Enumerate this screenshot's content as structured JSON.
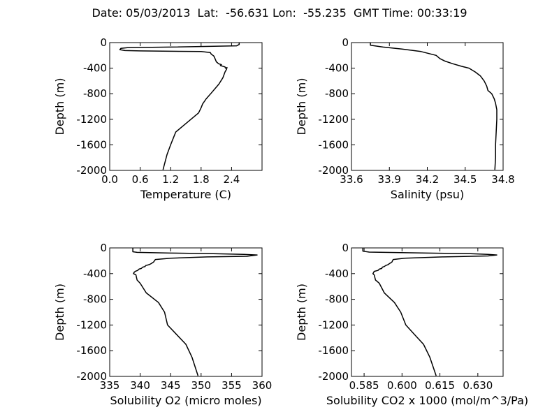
{
  "figure": {
    "title": "Date: 05/03/2013  Lat:  -56.631 Lon:  -55.235  GMT Time: 00:33:19"
  },
  "chart_data": [
    {
      "type": "line",
      "xlabel": "Temperature (C)",
      "ylabel": "Depth (m)",
      "xlim": [
        0.0,
        3.0
      ],
      "ylim": [
        -2000,
        0
      ],
      "xticks": [
        "0.0",
        "0.6",
        "1.2",
        "1.8",
        "2.4"
      ],
      "xtick_values": [
        0.0,
        0.6,
        1.2,
        1.8,
        2.4
      ],
      "yticks": [
        "0",
        "-400",
        "-800",
        "-1200",
        "-1600",
        "-2000"
      ],
      "ytick_values": [
        0,
        -400,
        -800,
        -1200,
        -1600,
        -2000
      ],
      "grid": false,
      "series": [
        {
          "x": [
            2.55,
            2.55,
            2.5,
            1.2,
            0.35,
            0.22,
            0.2,
            0.3,
            0.6,
            1.2,
            1.8,
            1.98,
            2.0,
            2.05,
            2.08,
            2.1,
            2.13,
            2.14,
            2.2,
            2.18,
            2.27,
            2.28,
            2.31,
            2.3,
            2.27,
            2.23,
            2.15,
            2.0,
            1.9,
            1.83,
            1.8,
            1.75,
            1.6,
            1.45,
            1.3,
            1.25,
            1.2,
            1.13,
            1.05
          ],
          "y": [
            0,
            -30,
            -50,
            -70,
            -80,
            -90,
            -110,
            -125,
            -130,
            -135,
            -140,
            -155,
            -180,
            -210,
            -260,
            -300,
            -320,
            -330,
            -345,
            -360,
            -380,
            -400,
            -390,
            -420,
            -460,
            -550,
            -650,
            -790,
            -880,
            -960,
            -1020,
            -1100,
            -1200,
            -1300,
            -1400,
            -1500,
            -1600,
            -1750,
            -1990
          ]
        }
      ]
    },
    {
      "type": "line",
      "xlabel": "Salinity (psu)",
      "ylabel": "Depth (m)",
      "xlim": [
        33.6,
        34.8
      ],
      "ylim": [
        -2000,
        0
      ],
      "xticks": [
        "33.6",
        "33.9",
        "34.2",
        "34.5",
        "34.8"
      ],
      "xtick_values": [
        33.6,
        33.9,
        34.2,
        34.5,
        34.8
      ],
      "yticks": [
        "0",
        "-400",
        "-800",
        "-1200",
        "-1600",
        "-2000"
      ],
      "ytick_values": [
        0,
        -400,
        -800,
        -1200,
        -1600,
        -2000
      ],
      "grid": false,
      "series": [
        {
          "x": [
            33.75,
            33.75,
            33.85,
            34.0,
            34.15,
            34.27,
            34.3,
            34.34,
            34.4,
            34.47,
            34.53,
            34.58,
            34.62,
            34.65,
            34.67,
            34.68,
            34.71,
            34.73,
            34.74,
            34.75,
            34.75,
            34.745,
            34.74,
            34.74,
            34.735
          ],
          "y": [
            0,
            -40,
            -70,
            -100,
            -140,
            -200,
            -250,
            -290,
            -330,
            -370,
            -400,
            -460,
            -520,
            -600,
            -680,
            -750,
            -800,
            -880,
            -950,
            -1050,
            -1200,
            -1400,
            -1600,
            -1800,
            -1990
          ]
        }
      ]
    },
    {
      "type": "line",
      "xlabel": "Solubility O2 (micro moles)",
      "ylabel": "Depth (m)",
      "xlim": [
        335,
        360
      ],
      "ylim": [
        -2000,
        0
      ],
      "xticks": [
        "335",
        "340",
        "345",
        "350",
        "355",
        "360"
      ],
      "xtick_values": [
        335,
        340,
        345,
        350,
        355,
        360
      ],
      "yticks": [
        "0",
        "-400",
        "-800",
        "-1200",
        "-1600",
        "-2000"
      ],
      "ytick_values": [
        0,
        -400,
        -800,
        -1200,
        -1600,
        -2000
      ],
      "grid": false,
      "series": [
        {
          "x": [
            338.8,
            338.8,
            339.5,
            345,
            352,
            357,
            359.2,
            357.5,
            351,
            345,
            342.5,
            342.2,
            341.8,
            341.5,
            340.9,
            340.8,
            340.4,
            340.2,
            339.8,
            339.6,
            339.2,
            339.0,
            338.9,
            339.3,
            339.5,
            340,
            341,
            343,
            344,
            344.5,
            346,
            347.5,
            348.5,
            349.5
          ],
          "y": [
            0,
            -60,
            -70,
            -80,
            -90,
            -100,
            -110,
            -130,
            -140,
            -160,
            -180,
            -220,
            -245,
            -260,
            -275,
            -290,
            -300,
            -320,
            -330,
            -350,
            -365,
            -380,
            -400,
            -420,
            -500,
            -550,
            -700,
            -850,
            -1000,
            -1200,
            -1350,
            -1500,
            -1700,
            -1990
          ]
        }
      ]
    },
    {
      "type": "line",
      "xlabel": "Solubility CO2 x 1000 (mol/m^3/Pa)",
      "ylabel": "Depth (m)",
      "xlim": [
        0.58,
        0.64
      ],
      "ylim": [
        -2000,
        0
      ],
      "xticks": [
        "0.585",
        "0.600",
        "0.615",
        "0.630"
      ],
      "xtick_values": [
        0.585,
        0.6,
        0.615,
        0.63
      ],
      "yticks": [
        "0",
        "-400",
        "-800",
        "-1200",
        "-1600",
        "-2000"
      ],
      "ytick_values": [
        0,
        -400,
        -800,
        -1200,
        -1600,
        -2000
      ],
      "grid": false,
      "series": [
        {
          "x": [
            0.5845,
            0.5845,
            0.587,
            0.61,
            0.627,
            0.634,
            0.6375,
            0.634,
            0.616,
            0.601,
            0.5965,
            0.596,
            0.595,
            0.5945,
            0.5935,
            0.593,
            0.5922,
            0.592,
            0.591,
            0.5905,
            0.589,
            0.5888,
            0.5885,
            0.589,
            0.5895,
            0.591,
            0.593,
            0.597,
            0.5995,
            0.6015,
            0.605,
            0.6085,
            0.611,
            0.6135
          ],
          "y": [
            0,
            -50,
            -65,
            -80,
            -90,
            -100,
            -110,
            -125,
            -140,
            -160,
            -180,
            -220,
            -245,
            -260,
            -275,
            -290,
            -300,
            -320,
            -330,
            -350,
            -365,
            -380,
            -400,
            -420,
            -500,
            -550,
            -700,
            -850,
            -1000,
            -1200,
            -1350,
            -1500,
            -1700,
            -1990
          ]
        }
      ]
    }
  ]
}
